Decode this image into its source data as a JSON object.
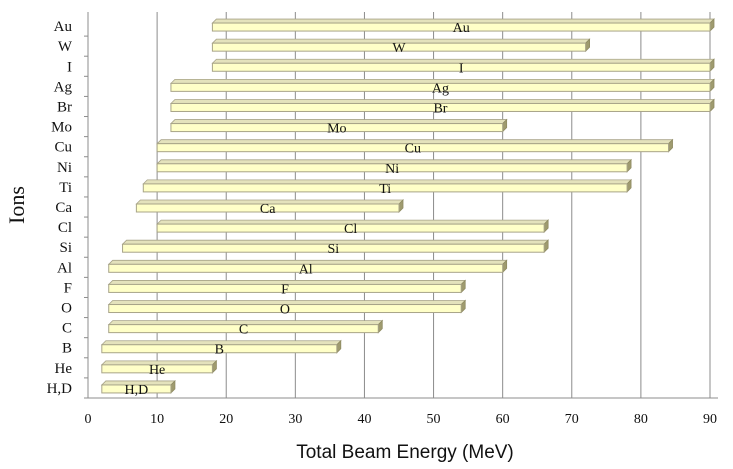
{
  "chart_data": {
    "type": "bar",
    "orientation": "horizontal",
    "floating": true,
    "title": "",
    "xlabel": "Total Beam Energy (MeV)",
    "ylabel": "Ions",
    "xlim": [
      0,
      90
    ],
    "xticks": [
      0,
      10,
      20,
      30,
      40,
      50,
      60,
      70,
      80,
      90
    ],
    "grid": "vertical",
    "legend": "none",
    "bar_color": "#ffffc8",
    "bar_edge_color": "#a8a488",
    "categories": [
      "Au",
      "W",
      "I",
      "Ag",
      "Br",
      "Mo",
      "Cu",
      "Ni",
      "Ti",
      "Ca",
      "Cl",
      "Si",
      "Al",
      "F",
      "O",
      "C",
      "B",
      "He",
      "H,D"
    ],
    "ranges": [
      [
        18,
        90
      ],
      [
        18,
        72
      ],
      [
        18,
        90
      ],
      [
        12,
        90
      ],
      [
        12,
        90
      ],
      [
        12,
        60
      ],
      [
        10,
        84
      ],
      [
        10,
        78
      ],
      [
        8,
        78
      ],
      [
        7,
        45
      ],
      [
        10,
        66
      ],
      [
        5,
        66
      ],
      [
        3,
        60
      ],
      [
        3,
        54
      ],
      [
        3,
        54
      ],
      [
        3,
        42
      ],
      [
        2,
        36
      ],
      [
        2,
        18
      ],
      [
        2,
        12
      ]
    ]
  }
}
